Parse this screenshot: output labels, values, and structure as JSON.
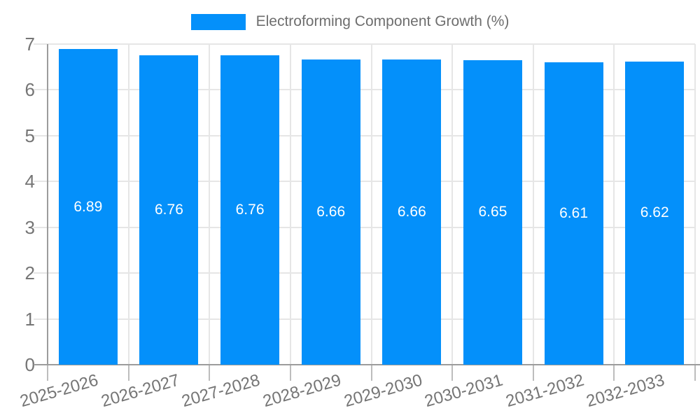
{
  "chart_data": {
    "type": "bar",
    "title": "Electroforming Component Growth (%)",
    "categories": [
      "2025-2026",
      "2026-2027",
      "2027-2028",
      "2028-2029",
      "2029-2030",
      "2030-2031",
      "2031-2032",
      "2032-2033"
    ],
    "values": [
      6.89,
      6.76,
      6.76,
      6.66,
      6.66,
      6.65,
      6.61,
      6.62
    ],
    "bar_labels": [
      "6.89",
      "6.76",
      "6.76",
      "6.66",
      "6.66",
      "6.65",
      "6.61",
      "6.62"
    ],
    "xlabel": "",
    "ylabel": "",
    "ylim": [
      0,
      7
    ],
    "yticks": [
      0,
      1,
      2,
      3,
      4,
      5,
      6,
      7
    ],
    "grid": true,
    "legend_position": "top-center",
    "colors": {
      "bar": "#0490fa",
      "grid": "#e6e6e6",
      "axis_line": "#9c9c9c",
      "x_tick_mark": "#bdbdbd",
      "tick_label_text": "#757575",
      "title_text": "#6e6e6e",
      "bar_label_text": "#ffffff",
      "background": "#ffffff"
    }
  }
}
